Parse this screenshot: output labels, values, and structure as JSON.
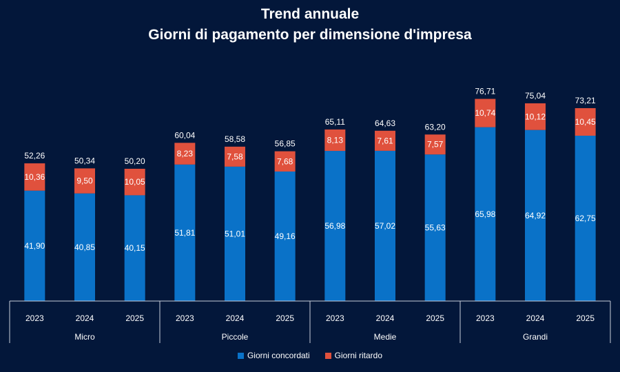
{
  "chart_data": {
    "type": "bar",
    "stacked": true,
    "title": "Trend annuale",
    "subtitle": "Giorni di pagamento per dimensione d'impresa",
    "groups": [
      "Micro",
      "Piccole",
      "Medie",
      "Grandi"
    ],
    "years": [
      "2023",
      "2024",
      "2025"
    ],
    "categories": [
      "2023",
      "2024",
      "2025",
      "2023",
      "2024",
      "2025",
      "2023",
      "2024",
      "2025",
      "2023",
      "2024",
      "2025"
    ],
    "series": [
      {
        "name": "Giorni concordati",
        "color": "#0a72c8",
        "values": [
          41.9,
          40.85,
          40.15,
          51.81,
          51.01,
          49.16,
          56.98,
          57.02,
          55.63,
          65.98,
          64.92,
          62.75
        ],
        "labels": [
          "41,90",
          "40,85",
          "40,15",
          "51,81",
          "51,01",
          "49,16",
          "56,98",
          "57,02",
          "55,63",
          "65,98",
          "64,92",
          "62,75"
        ]
      },
      {
        "name": "Giorni ritardo",
        "color": "#e0513d",
        "values": [
          10.36,
          9.5,
          10.05,
          8.23,
          7.58,
          7.68,
          8.13,
          7.61,
          7.57,
          10.74,
          10.12,
          10.45
        ],
        "labels": [
          "10,36",
          "9,50",
          "10,05",
          "8,23",
          "7,58",
          "7,68",
          "8,13",
          "7,61",
          "7,57",
          "10,74",
          "10,12",
          "10,45"
        ]
      }
    ],
    "totals": [
      52.26,
      50.34,
      50.2,
      60.04,
      58.58,
      56.85,
      65.11,
      64.63,
      63.2,
      76.71,
      75.04,
      73.21
    ],
    "total_labels": [
      "52,26",
      "50,34",
      "50,20",
      "60,04",
      "58,58",
      "56,85",
      "65,11",
      "64,63",
      "63,20",
      "76,71",
      "75,04",
      "73,21"
    ],
    "ylim": [
      0,
      80
    ],
    "grid": false,
    "legend_position": "bottom-center"
  }
}
